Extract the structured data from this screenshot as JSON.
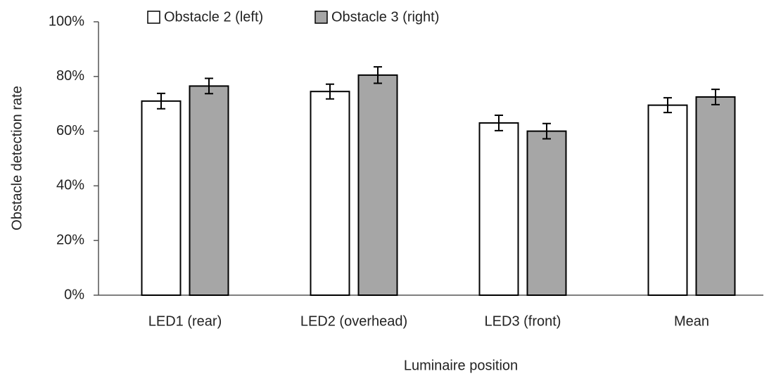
{
  "chart_data": {
    "type": "bar",
    "x_label": "Luminaire position",
    "y_label": "Obstacle detection rate",
    "categories": [
      "LED1 (rear)",
      "LED2 (overhead)",
      "LED3 (front)",
      "Mean"
    ],
    "series": [
      {
        "name": "Obstacle 2 (left)",
        "color": "#ffffff",
        "values": [
          71,
          74.5,
          63,
          69.5
        ],
        "errors": [
          2.8,
          2.7,
          2.8,
          2.7
        ]
      },
      {
        "name": "Obstacle 3 (right)",
        "color": "#a6a6a6",
        "values": [
          76.5,
          80.5,
          60,
          72.5
        ],
        "errors": [
          2.8,
          3,
          2.8,
          2.8
        ]
      }
    ],
    "ylim": [
      0,
      100
    ],
    "yticks": [
      {
        "value": 0,
        "label": "0%"
      },
      {
        "value": 20,
        "label": "20%"
      },
      {
        "value": 40,
        "label": "40%"
      },
      {
        "value": 60,
        "label": "60%"
      },
      {
        "value": 80,
        "label": "80%"
      },
      {
        "value": 100,
        "label": "100%"
      }
    ],
    "legend": "top"
  }
}
